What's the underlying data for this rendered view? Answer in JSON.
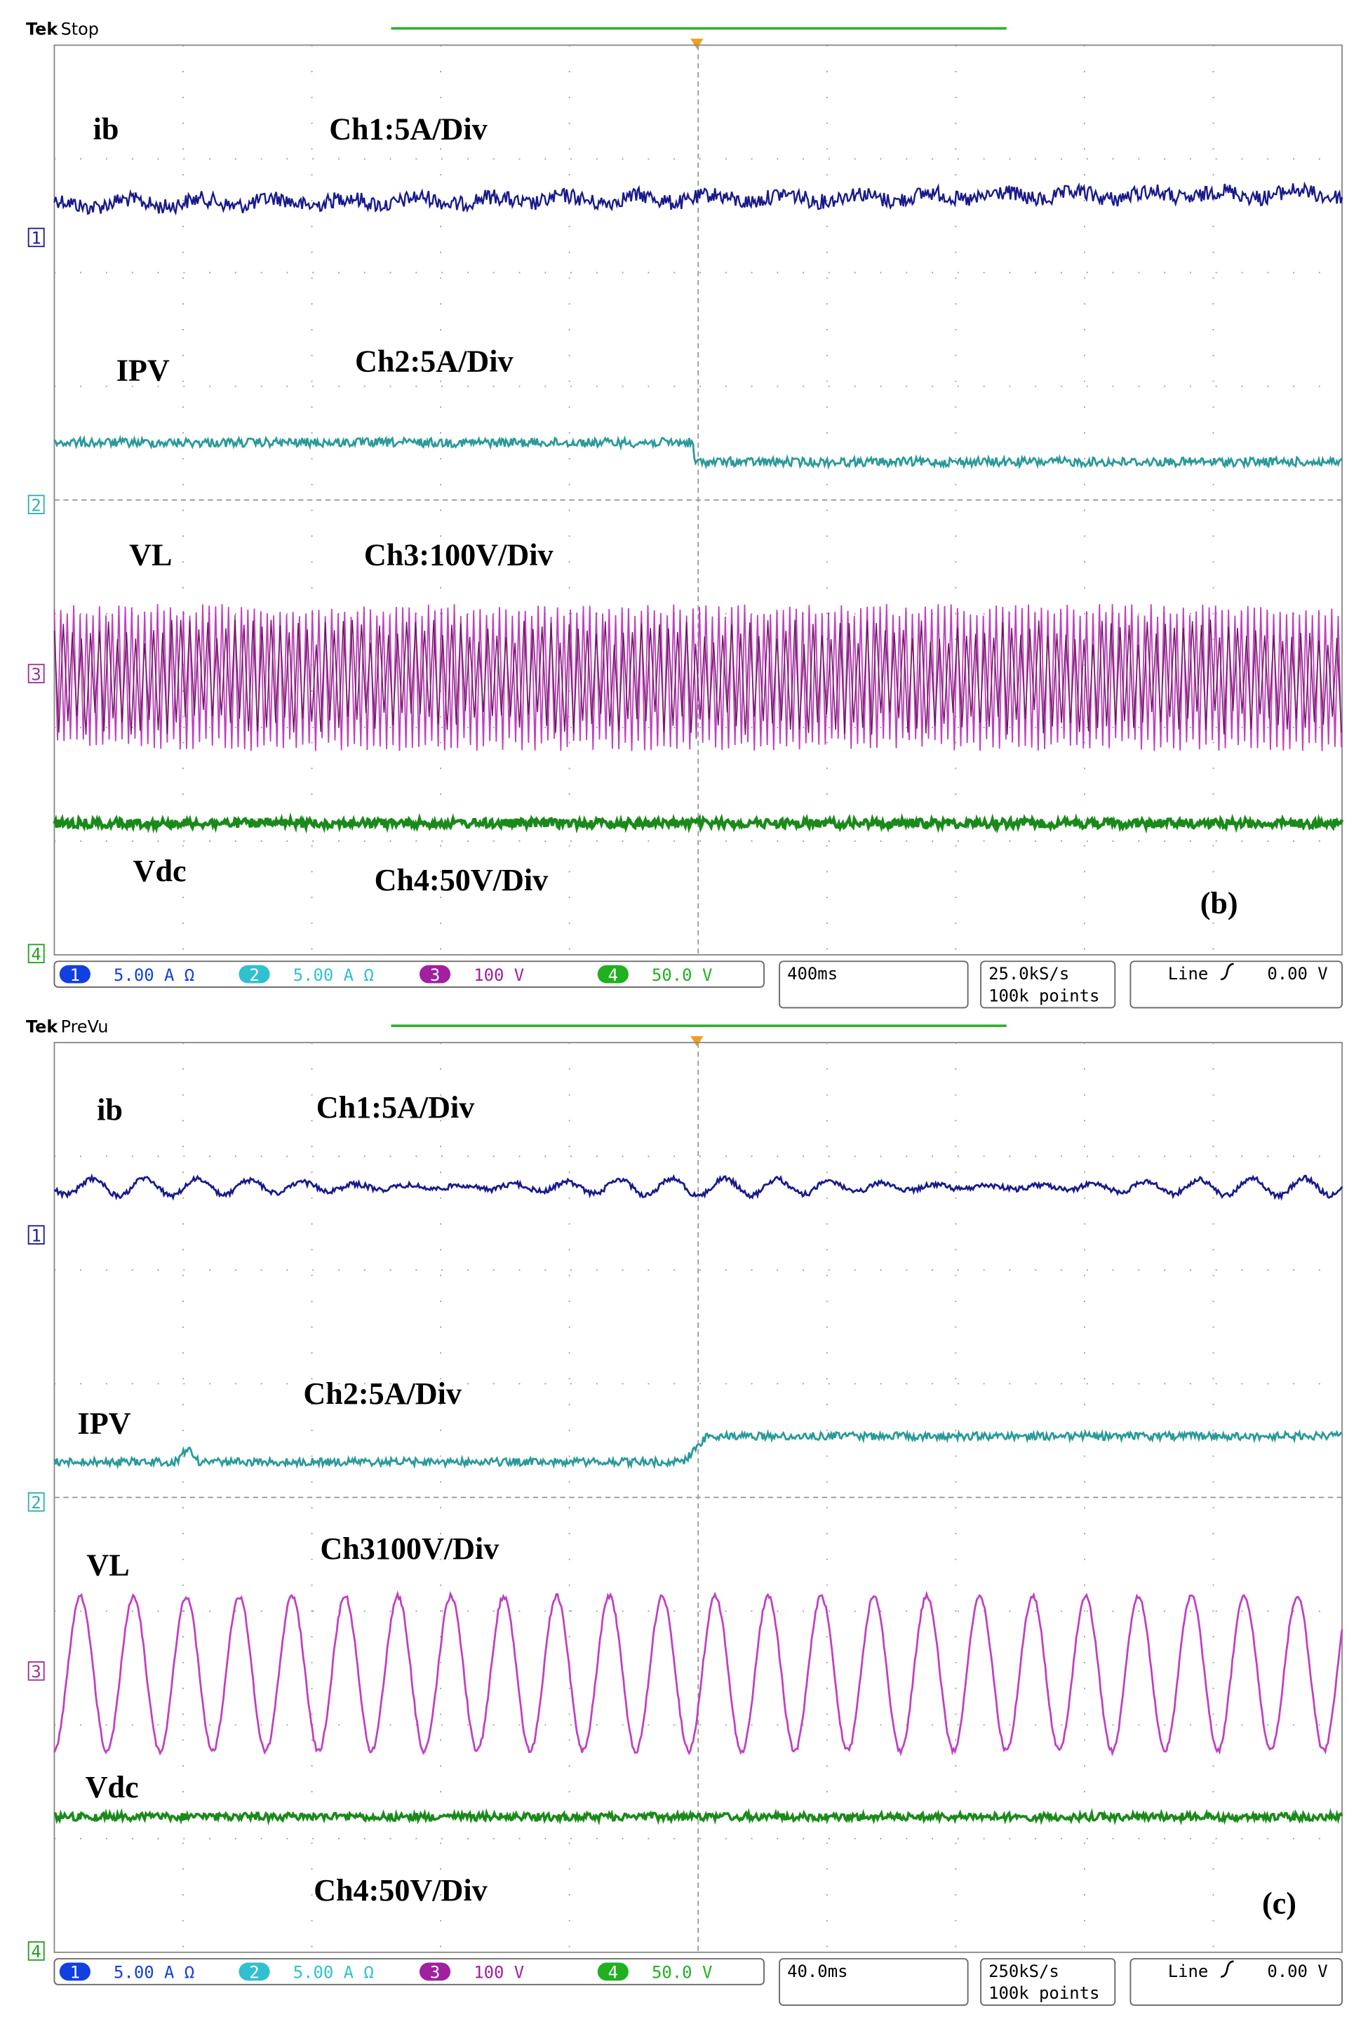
{
  "panels": [
    {
      "header": {
        "brand": "Tek",
        "state": "Stop"
      },
      "labels": [
        "ib",
        "Ch1:5A/Div",
        "IPV",
        "Ch2:5A/Div",
        "VL",
        "Ch3:100V/Div",
        "Vdc",
        "Ch4:50V/Div"
      ],
      "tag": "(b)",
      "channels": [
        "1",
        "2",
        "3",
        "4"
      ],
      "status": {
        "ch1": "5.00 A Ω",
        "ch2": "5.00 A Ω",
        "ch3": "100 V",
        "ch4": "50.0 V",
        "timebase": "400ms",
        "rate": "25.0kS/s",
        "points": "100k points",
        "trigger": "Line",
        "level": "0.00 V"
      }
    },
    {
      "header": {
        "brand": "Tek",
        "state": "PreVu"
      },
      "labels": [
        "ib",
        "Ch1:5A/Div",
        "IPV",
        "Ch2:5A/Div",
        "VL",
        "Ch3100V/Div",
        "Vdc",
        "Ch4:50V/Div"
      ],
      "tag": "(c)",
      "channels": [
        "1",
        "2",
        "3",
        "4"
      ],
      "status": {
        "ch1": "5.00 A Ω",
        "ch2": "5.00 A Ω",
        "ch3": "100 V",
        "ch4": "50.0 V",
        "timebase": "40.0ms",
        "rate": "250kS/s",
        "points": "100k points",
        "trigger": "Line",
        "level": "0.00 V"
      }
    }
  ]
}
